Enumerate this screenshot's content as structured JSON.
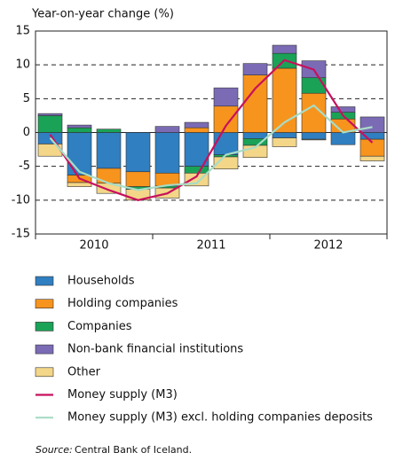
{
  "chart_data": {
    "type": "stacked_bar_line",
    "y_axis_label": "Year-on-year change (%)",
    "categories": [
      null,
      null,
      null,
      null,
      null,
      null,
      null,
      null,
      null,
      null,
      null,
      null
    ],
    "x_group_labels": [
      "2010",
      "2011",
      "2012"
    ],
    "ylim": [
      -15,
      15
    ],
    "yticks": [
      -15,
      -10,
      -5,
      0,
      5,
      10,
      15
    ],
    "grid": true,
    "series": [
      {
        "name": "Households",
        "kind": "bar",
        "color": "#2f7fc1",
        "values": [
          -1.7,
          -6.3,
          -5.3,
          -5.8,
          -6,
          -5,
          -3.3,
          -0.9,
          -0.8,
          -1,
          -1.8,
          -1
        ]
      },
      {
        "name": "Holding companies",
        "kind": "bar",
        "color": "#f7941d",
        "values": [
          0,
          -1.1,
          -2.2,
          -2.2,
          -1.9,
          0.7,
          3.9,
          8.5,
          9.5,
          5.8,
          2,
          -2.5
        ]
      },
      {
        "name": "Companies",
        "kind": "bar",
        "color": "#1aa257",
        "values": [
          2.5,
          0.7,
          0.5,
          -0.4,
          -0.3,
          -1,
          -0.3,
          -1,
          2.2,
          2.3,
          1,
          0
        ]
      },
      {
        "name": "Non-bank financial institutions",
        "kind": "bar",
        "color": "#7b6bb5",
        "values": [
          0.3,
          0.4,
          0,
          0,
          0.9,
          0.8,
          2.7,
          1.7,
          1.2,
          2.5,
          0.8,
          2.3
        ]
      },
      {
        "name": "Other",
        "kind": "bar",
        "color": "#f3d688",
        "values": [
          -1.8,
          -0.6,
          -1.5,
          -1.6,
          -1.5,
          -1.9,
          -1.8,
          -1.8,
          -1.3,
          -0.1,
          0,
          -0.7
        ]
      },
      {
        "name": "Money supply (M3)",
        "kind": "line",
        "color": "#c8105d",
        "values": [
          -0.3,
          -6.8,
          -8.5,
          -10,
          -9,
          -6.5,
          1,
          6.5,
          10.7,
          9.3,
          2.5,
          -1.5
        ]
      },
      {
        "name": "Money supply (M3) excl. holding companies deposits",
        "kind": "line",
        "color": "#a8dcc6",
        "values": [
          -0.8,
          -5.8,
          -7.5,
          -8.5,
          -7.8,
          -7.5,
          -3.3,
          -2.2,
          1.5,
          4,
          0,
          0.8
        ]
      }
    ],
    "source_label": "Source:",
    "source": "Central Bank of Iceland."
  }
}
